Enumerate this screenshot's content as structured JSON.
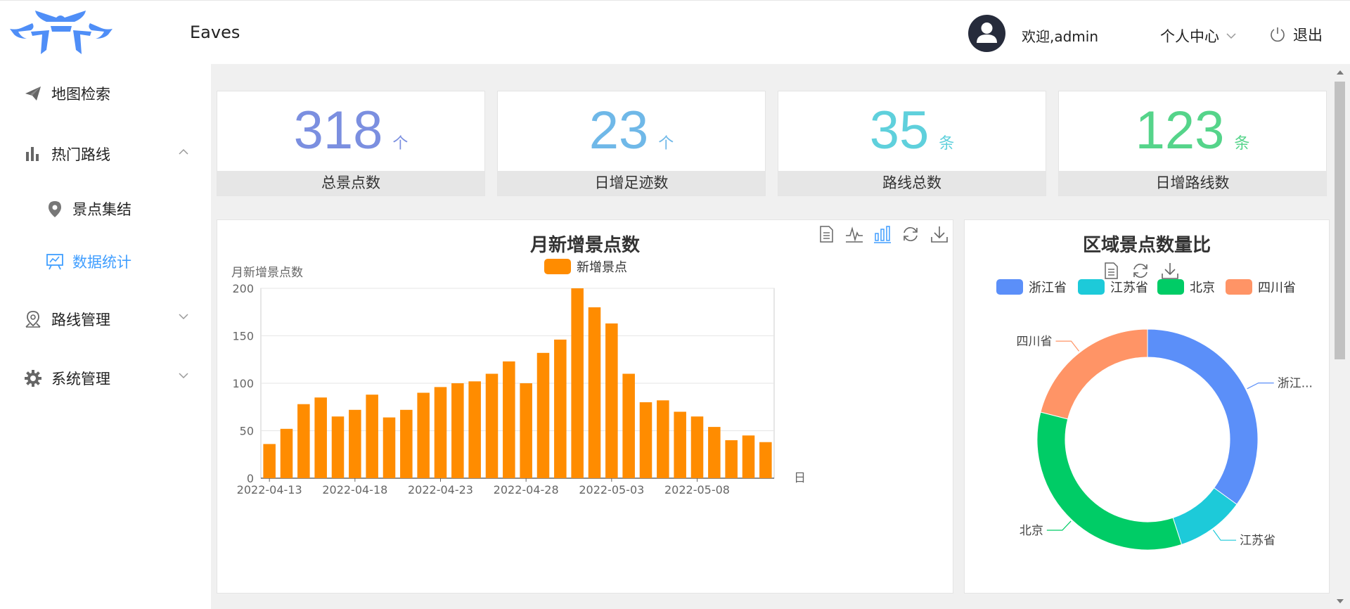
{
  "header": {
    "app_title": "Eaves",
    "welcome": "欢迎,admin",
    "profile_menu": "个人中心",
    "logout": "退出"
  },
  "sidebar": {
    "items": [
      {
        "label": "地图检索",
        "icon": "paper-plane-icon"
      },
      {
        "label": "热门路线",
        "icon": "bar-chart-icon",
        "expanded": true
      },
      {
        "label": "景点集结",
        "icon": "location-pin-icon"
      },
      {
        "label": "数据统计",
        "icon": "presentation-icon",
        "active": true
      },
      {
        "label": "路线管理",
        "icon": "map-pin-icon"
      },
      {
        "label": "系统管理",
        "icon": "gear-icon"
      }
    ]
  },
  "stats": [
    {
      "value": "318",
      "unit": "个",
      "label": "总景点数",
      "color": "#7b8fe0"
    },
    {
      "value": "23",
      "unit": "个",
      "label": "日增足迹数",
      "color": "#6fb8e8"
    },
    {
      "value": "35",
      "unit": "条",
      "label": "路线总数",
      "color": "#5fd0dc"
    },
    {
      "value": "123",
      "unit": "条",
      "label": "日增路线数",
      "color": "#55d48a"
    }
  ],
  "chart_data": [
    {
      "type": "bar",
      "title": "月新增景点数",
      "ylabel": "月新增景点数",
      "xlabel": "日",
      "legend": [
        "新增景点"
      ],
      "legend_position": "top",
      "color": "#ff8c00",
      "ylim": [
        0,
        200
      ],
      "yticks": [
        0,
        50,
        100,
        150,
        200
      ],
      "xtick_labels": [
        "2022-04-13",
        "2022-04-18",
        "2022-04-23",
        "2022-04-28",
        "2022-05-03",
        "2022-05-08"
      ],
      "categories": [
        "2022-04-13",
        "2022-04-14",
        "2022-04-15",
        "2022-04-16",
        "2022-04-17",
        "2022-04-18",
        "2022-04-19",
        "2022-04-20",
        "2022-04-21",
        "2022-04-22",
        "2022-04-23",
        "2022-04-24",
        "2022-04-25",
        "2022-04-26",
        "2022-04-27",
        "2022-04-28",
        "2022-04-29",
        "2022-04-30",
        "2022-05-01",
        "2022-05-02",
        "2022-05-03",
        "2022-05-04",
        "2022-05-05",
        "2022-05-06",
        "2022-05-07",
        "2022-05-08",
        "2022-05-09",
        "2022-05-10",
        "2022-05-11",
        "2022-05-12"
      ],
      "series": [
        {
          "name": "新增景点",
          "values": [
            36,
            52,
            78,
            85,
            65,
            72,
            88,
            64,
            72,
            90,
            96,
            100,
            102,
            110,
            123,
            100,
            132,
            146,
            200,
            180,
            163,
            110,
            80,
            82,
            70,
            65,
            54,
            40,
            45,
            38
          ]
        }
      ],
      "toolbox": [
        "data-view-icon",
        "line-chart-icon",
        "bar-chart-icon",
        "refresh-icon",
        "download-icon"
      ]
    },
    {
      "type": "pie",
      "title": "区域景点数量比",
      "legend_position": "top",
      "labels": [
        "浙江省",
        "江苏省",
        "北京",
        "四川省"
      ],
      "slice_labels": [
        "浙江...",
        "江苏省",
        "北京",
        "四川省"
      ],
      "values": [
        35,
        10,
        34,
        21
      ],
      "colors": [
        "#5b8ff9",
        "#1dcad9",
        "#00cc66",
        "#ff9466"
      ],
      "toolbox": [
        "data-view-icon",
        "refresh-icon",
        "download-icon"
      ]
    }
  ]
}
